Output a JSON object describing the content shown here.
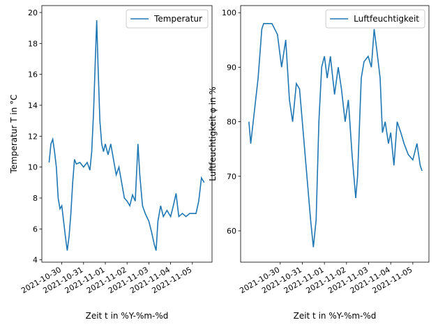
{
  "chart_data": [
    {
      "type": "line",
      "x": [
        "2021-10-29 10:00",
        "2021-10-29 12:00",
        "2021-10-29 14:00",
        "2021-10-29 16:00",
        "2021-10-29 18:00",
        "2021-10-29 20:00",
        "2021-10-29 22:00",
        "2021-10-30 00:00",
        "2021-10-30 02:00",
        "2021-10-30 04:00",
        "2021-10-30 06:00",
        "2021-10-30 08:00",
        "2021-10-30 10:00",
        "2021-10-30 12:00",
        "2021-10-30 14:00",
        "2021-10-30 16:00",
        "2021-10-30 20:00",
        "2021-10-31 00:00",
        "2021-10-31 04:00",
        "2021-10-31 07:00",
        "2021-10-31 09:00",
        "2021-10-31 11:00",
        "2021-10-31 13:00",
        "2021-10-31 14:30",
        "2021-10-31 16:00",
        "2021-10-31 18:00",
        "2021-10-31 20:00",
        "2021-10-31 22:00",
        "2021-11-01 00:00",
        "2021-11-01 03:00",
        "2021-11-01 06:00",
        "2021-11-01 09:00",
        "2021-11-01 12:00",
        "2021-11-01 15:00",
        "2021-11-01 18:00",
        "2021-11-01 21:00",
        "2021-11-02 00:00",
        "2021-11-02 03:00",
        "2021-11-02 06:00",
        "2021-11-02 09:00",
        "2021-11-02 12:00",
        "2021-11-02 14:00",
        "2021-11-02 17:00",
        "2021-11-02 20:00",
        "2021-11-03 00:00",
        "2021-11-03 03:00",
        "2021-11-03 06:00",
        "2021-11-03 08:00",
        "2021-11-03 10:00",
        "2021-11-03 13:00",
        "2021-11-03 16:00",
        "2021-11-03 20:00",
        "2021-11-04 00:00",
        "2021-11-04 03:00",
        "2021-11-04 06:00",
        "2021-11-04 09:00",
        "2021-11-04 13:00",
        "2021-11-04 17:00",
        "2021-11-04 21:00",
        "2021-11-05 00:00",
        "2021-11-05 04:00",
        "2021-11-05 07:00",
        "2021-11-05 10:00",
        "2021-11-05 13:00"
      ],
      "series": [
        {
          "name": "Temperatur",
          "color": "#1f77b4",
          "values": [
            10.3,
            11.5,
            11.8,
            11.0,
            10.0,
            8.0,
            7.3,
            7.5,
            6.5,
            5.5,
            4.6,
            5.5,
            7.0,
            9.0,
            10.5,
            10.2,
            10.3,
            10.0,
            10.3,
            9.8,
            11.0,
            13.5,
            17.0,
            19.5,
            16.5,
            13.0,
            11.5,
            11.0,
            11.5,
            10.8,
            11.5,
            10.5,
            9.5,
            10.0,
            9.0,
            8.0,
            7.8,
            7.5,
            8.2,
            7.8,
            11.5,
            9.5,
            7.5,
            7.0,
            6.5,
            5.8,
            5.0,
            4.6,
            6.5,
            7.5,
            6.8,
            7.2,
            6.8,
            7.5,
            8.3,
            6.8,
            7.0,
            6.8,
            7.0,
            7.0,
            7.0,
            7.8,
            9.3,
            9.0
          ]
        }
      ],
      "xlim": [
        "2021-10-29 02:00",
        "2021-11-05 21:40"
      ],
      "xticks": [
        "2021-10-30",
        "2021-10-31",
        "2021-11-01",
        "2021-11-02",
        "2021-11-03",
        "2021-11-04",
        "2021-11-05"
      ],
      "ylim": [
        3.85,
        20.45
      ],
      "yticks": [
        4,
        6,
        8,
        10,
        12,
        14,
        16,
        18,
        20
      ],
      "xlabel": "Zeit t in %Y-%m-%d",
      "ylabel": "Temperatur T in °C",
      "legend": "upper right"
    },
    {
      "type": "line",
      "x": [
        "2021-10-28 14:00",
        "2021-10-28 16:00",
        "2021-10-28 20:00",
        "2021-10-29 00:00",
        "2021-10-29 04:00",
        "2021-10-29 06:00",
        "2021-10-29 07:30",
        "2021-10-29 15:00",
        "2021-10-29 21:00",
        "2021-10-30 01:30",
        "2021-10-30 06:00",
        "2021-10-30 10:00",
        "2021-10-30 13:30",
        "2021-10-30 17:30",
        "2021-10-30 21:00",
        "2021-10-31 00:00",
        "2021-10-31 03:00",
        "2021-10-31 06:00",
        "2021-10-31 09:00",
        "2021-10-31 12:00",
        "2021-10-31 15:00",
        "2021-10-31 18:00",
        "2021-10-31 21:00",
        "2021-11-01 00:00",
        "2021-11-01 03:00",
        "2021-11-01 06:30",
        "2021-11-01 11:00",
        "2021-11-01 15:00",
        "2021-11-01 18:30",
        "2021-11-01 22:30",
        "2021-11-02 02:00",
        "2021-11-02 06:00",
        "2021-11-02 10:00",
        "2021-11-02 12:00",
        "2021-11-02 16:00",
        "2021-11-02 19:00",
        "2021-11-02 23:30",
        "2021-11-03 03:00",
        "2021-11-03 06:00",
        "2021-11-03 09:00",
        "2021-11-03 12:30",
        "2021-11-03 15:00",
        "2021-11-03 18:00",
        "2021-11-03 21:30",
        "2021-11-04 00:00",
        "2021-11-04 03:30",
        "2021-11-04 07:00",
        "2021-11-04 11:00",
        "2021-11-04 14:30",
        "2021-11-04 19:00",
        "2021-11-05 00:00",
        "2021-11-05 04:30",
        "2021-11-05 08:00",
        "2021-11-05 10:00"
      ],
      "series": [
        {
          "name": "Luftfeuchtigkeit",
          "color": "#1f77b4",
          "values": [
            80,
            76,
            82,
            88,
            97,
            98,
            98,
            98,
            96,
            90,
            95,
            84,
            80,
            87,
            86,
            80,
            74,
            68,
            62,
            57,
            62,
            80,
            90,
            92,
            88,
            92,
            85,
            90,
            86,
            80,
            84,
            74,
            66,
            70,
            88,
            91,
            92,
            90,
            97,
            93,
            88,
            78,
            80,
            76,
            78,
            72,
            80,
            78,
            76,
            74,
            73,
            76,
            72,
            71
          ]
        }
      ],
      "xlim": [
        "2021-10-28 05:00",
        "2021-11-05 17:30"
      ],
      "xticks": [
        "2021-10-30",
        "2021-10-31",
        "2021-11-01",
        "2021-11-02",
        "2021-11-03",
        "2021-11-04",
        "2021-11-05"
      ],
      "ylim": [
        54.25,
        101.3
      ],
      "yticks": [
        60,
        70,
        80,
        90,
        100
      ],
      "xlabel": "Zeit t in %Y-%m-%d",
      "ylabel": "Luftfeuchtigkeit φ in %",
      "legend": "upper right"
    }
  ]
}
